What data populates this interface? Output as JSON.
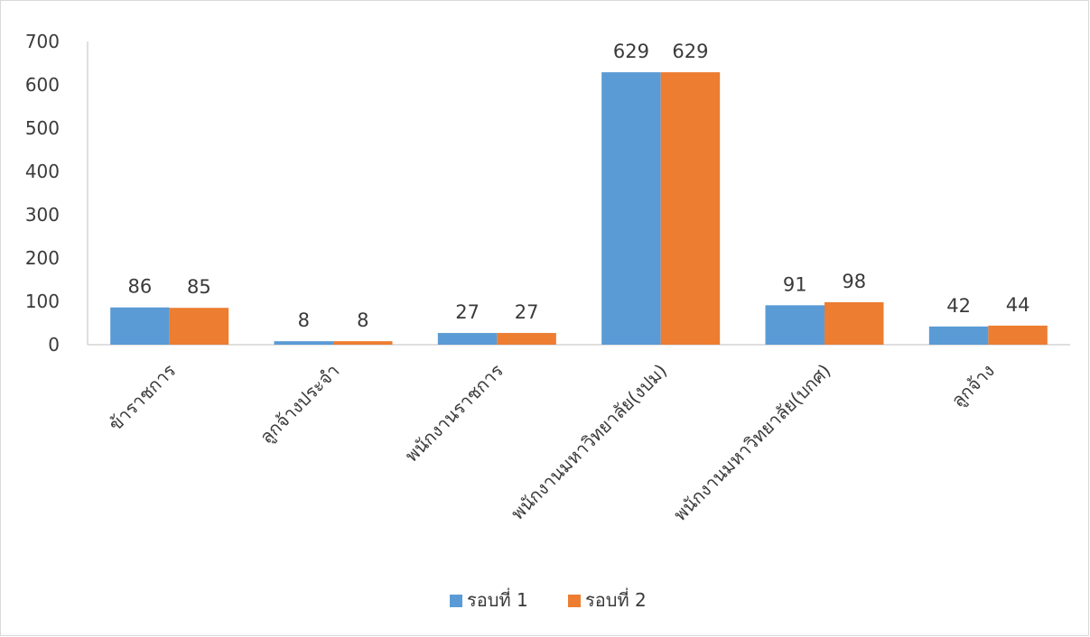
{
  "chart_data": {
    "type": "bar",
    "title": "",
    "xlabel": "",
    "ylabel": "",
    "categories": [
      "ข้าราชการ",
      "ลูกจ้างประจำ",
      "พนักงานราชการ",
      "พนักงานมหาวิทยาลัย(งปม)",
      "พนักงานมหาวิทยาลัย(บกศ)",
      "ลูกจ้าง"
    ],
    "series": [
      {
        "name": "รอบที่ 1",
        "color": "#5b9bd5",
        "values": [
          86,
          8,
          27,
          629,
          91,
          42
        ]
      },
      {
        "name": "รอบที่ 2",
        "color": "#ed7d31",
        "values": [
          85,
          8,
          27,
          629,
          98,
          44
        ]
      }
    ],
    "ylim": [
      0,
      700
    ],
    "yticks": [
      0,
      100,
      200,
      300,
      400,
      500,
      600,
      700
    ],
    "grid": false,
    "data_labels": true,
    "legend_position": "bottom"
  }
}
